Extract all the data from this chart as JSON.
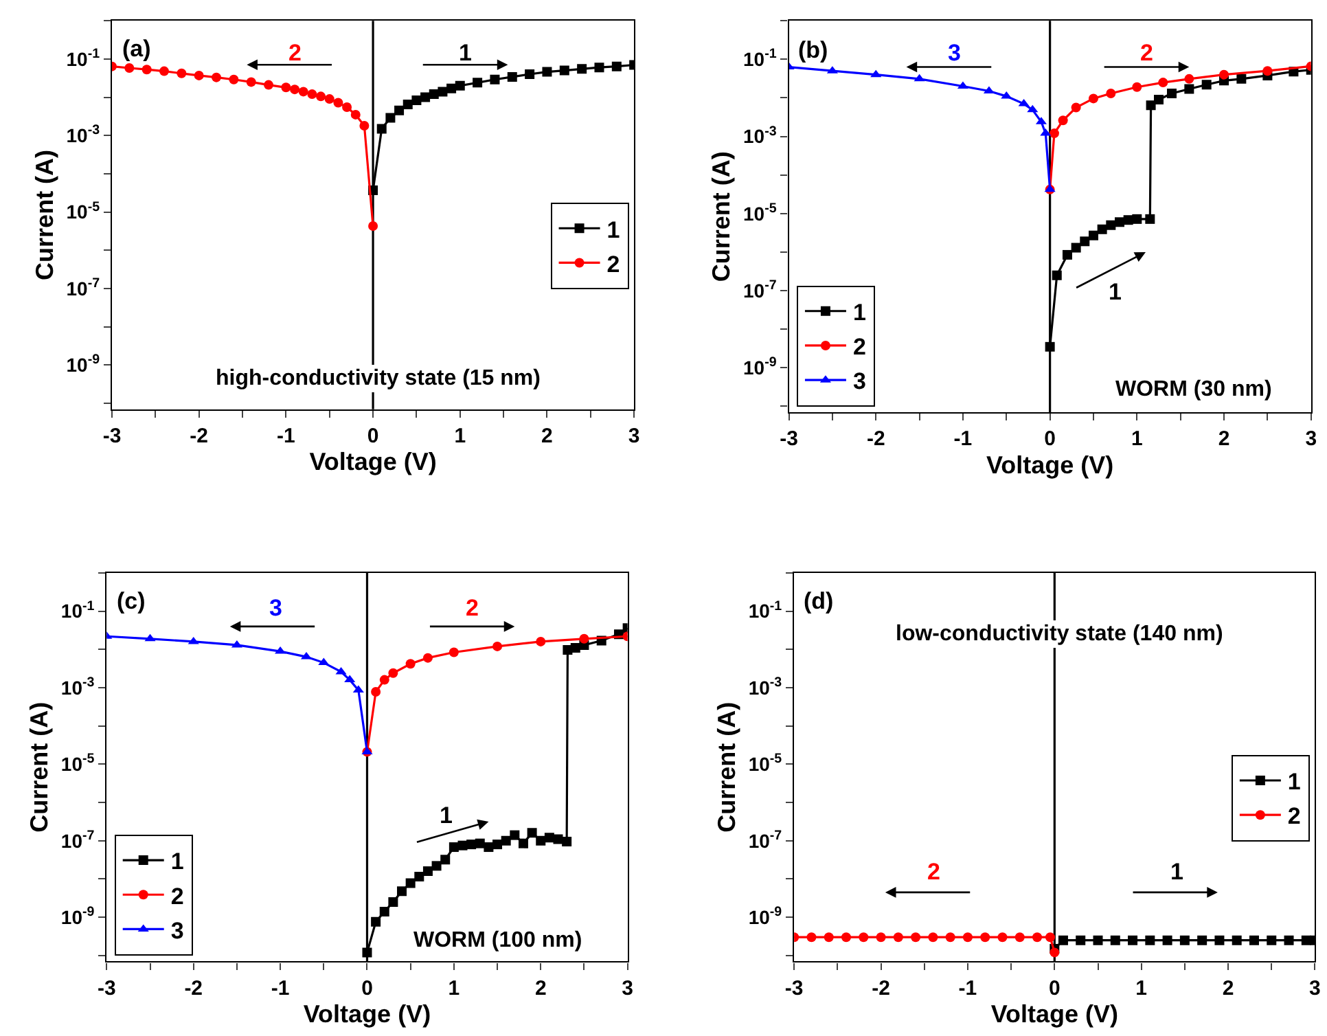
{
  "chart_data": [
    {
      "type": "line",
      "xlabel": "Voltage (V)",
      "ylabel": "Current (A)",
      "log": "y",
      "line_style": "solid",
      "legend": "right",
      "xlim": [
        -3,
        3
      ],
      "xticks": [
        -3,
        {
          "value": -2.5,
          "label": null
        },
        -2,
        {
          "value": -1.5,
          "label": null
        },
        -1,
        {
          "value": -0.5,
          "label": null
        },
        0,
        {
          "value": 0.5,
          "label": null
        },
        1,
        {
          "value": 1.5,
          "label": null
        },
        2,
        {
          "value": 2.5,
          "label": null
        },
        3
      ],
      "ylim": [
        7e-11,
        1
      ],
      "yticks": [
        {
          "value": 1,
          "label": null
        },
        {
          "value": 0.1,
          "label": "10$^{-1}$"
        },
        {
          "value": 0.01,
          "label": null
        },
        {
          "value": 0.001,
          "label": "10$^{-3}$"
        },
        {
          "value": 0.0001,
          "label": null
        },
        {
          "value": 1e-05,
          "label": "10$^{-5}$"
        },
        {
          "value": 1e-06,
          "label": null
        },
        {
          "value": 1e-07,
          "label": "10$^{-7}$"
        },
        {
          "value": 1e-08,
          "label": null
        },
        {
          "value": 1e-09,
          "label": "10$^{-9}$"
        },
        {
          "value": 1e-10,
          "label": null
        }
      ],
      "ref_lines": [
        {
          "axis": "x",
          "value": 0,
          "color": "#000000"
        }
      ],
      "annotations": [
        "(a)",
        "2",
        "1",
        "high-conductivity state (15 nm)"
      ],
      "series": [
        {
          "name": "1",
          "color": "#000000",
          "marker": "square",
          "x": [
            0,
            0.1,
            0.2,
            0.3,
            0.4,
            0.5,
            0.6,
            0.7,
            0.8,
            0.9,
            1.0,
            1.2,
            1.4,
            1.6,
            1.8,
            2.0,
            2.2,
            2.4,
            2.6,
            2.8,
            3.0
          ],
          "values": [
            3.7e-05,
            0.0015,
            0.0029,
            0.0045,
            0.0065,
            0.0083,
            0.01,
            0.012,
            0.014,
            0.017,
            0.02,
            0.024,
            0.029,
            0.034,
            0.04,
            0.046,
            0.05,
            0.055,
            0.06,
            0.064,
            0.07
          ]
        },
        {
          "name": "2",
          "color": "#ff0000",
          "marker": "circle",
          "x": [
            -3.0,
            -2.8,
            -2.6,
            -2.4,
            -2.2,
            -2.0,
            -1.8,
            -1.6,
            -1.4,
            -1.2,
            -1.0,
            -0.9,
            -0.8,
            -0.7,
            -0.6,
            -0.5,
            -0.4,
            -0.3,
            -0.2,
            -0.1,
            0
          ],
          "values": [
            0.064,
            0.058,
            0.053,
            0.048,
            0.042,
            0.037,
            0.033,
            0.029,
            0.025,
            0.021,
            0.018,
            0.016,
            0.014,
            0.012,
            0.0105,
            0.009,
            0.0072,
            0.0055,
            0.0035,
            0.0018,
            4.3e-06
          ]
        }
      ]
    },
    {
      "type": "line",
      "xlabel": "Voltage (V)",
      "ylabel": "Current (A)",
      "log": "y",
      "line_style": "solid",
      "legend": "bottom left",
      "xlim": [
        -3,
        3
      ],
      "xticks": [
        -3,
        {
          "value": -2.5,
          "label": null
        },
        -2,
        {
          "value": -1.5,
          "label": null
        },
        -1,
        {
          "value": -0.5,
          "label": null
        },
        0,
        {
          "value": 0.5,
          "label": null
        },
        1,
        {
          "value": 1.5,
          "label": null
        },
        2,
        {
          "value": 2.5,
          "label": null
        },
        3
      ],
      "ylim": [
        7e-11,
        1
      ],
      "yticks": [
        {
          "value": 1,
          "label": null
        },
        {
          "value": 0.1,
          "label": "10$^{-1}$"
        },
        {
          "value": 0.01,
          "label": null
        },
        {
          "value": 0.001,
          "label": "10$^{-3}$"
        },
        {
          "value": 0.0001,
          "label": null
        },
        {
          "value": 1e-05,
          "label": "10$^{-5}$"
        },
        {
          "value": 1e-06,
          "label": null
        },
        {
          "value": 1e-07,
          "label": "10$^{-7}$"
        },
        {
          "value": 1e-08,
          "label": null
        },
        {
          "value": 1e-09,
          "label": "10$^{-9}$"
        },
        {
          "value": 1e-10,
          "label": null
        }
      ],
      "ref_lines": [
        {
          "axis": "x",
          "value": 0,
          "color": "#000000"
        }
      ],
      "annotations": [
        "(b)",
        "3",
        "2",
        "1",
        "WORM (30 nm)"
      ],
      "series": [
        {
          "name": "1",
          "color": "#000000",
          "marker": "square",
          "x": [
            0,
            0.08,
            0.2,
            0.3,
            0.4,
            0.5,
            0.6,
            0.7,
            0.8,
            0.9,
            1.0,
            1.15,
            1.16,
            1.25,
            1.4,
            1.6,
            1.8,
            2.0,
            2.2,
            2.5,
            2.8,
            3.0
          ],
          "values": [
            3.5e-09,
            2.5e-07,
            8.5e-07,
            1.3e-06,
            1.9e-06,
            2.7e-06,
            3.9e-06,
            5e-06,
            6e-06,
            6.8e-06,
            7.2e-06,
            7.2e-06,
            0.0064,
            0.009,
            0.013,
            0.017,
            0.022,
            0.028,
            0.031,
            0.038,
            0.048,
            0.053
          ]
        },
        {
          "name": "2",
          "color": "#ff0000",
          "marker": "circle",
          "x": [
            0,
            0.05,
            0.15,
            0.3,
            0.5,
            0.7,
            1.0,
            1.3,
            1.6,
            2.0,
            2.5,
            3.0
          ],
          "values": [
            4.2e-05,
            0.0012,
            0.0026,
            0.0056,
            0.0096,
            0.013,
            0.019,
            0.025,
            0.031,
            0.04,
            0.05,
            0.066
          ]
        },
        {
          "name": "3",
          "color": "#0000ff",
          "marker": "triangle",
          "x": [
            -3.0,
            -2.5,
            -2.0,
            -1.5,
            -1.0,
            -0.7,
            -0.5,
            -0.3,
            -0.2,
            -0.1,
            -0.05,
            0
          ],
          "values": [
            0.063,
            0.05,
            0.04,
            0.031,
            0.02,
            0.015,
            0.011,
            0.007,
            0.0049,
            0.0024,
            0.0012,
            4.2e-05
          ]
        }
      ]
    },
    {
      "type": "line",
      "xlabel": "Voltage (V)",
      "ylabel": "Current (A)",
      "log": "y",
      "line_style": "solid",
      "legend": "bottom left",
      "xlim": [
        -3,
        3
      ],
      "xticks": [
        -3,
        {
          "value": -2.5,
          "label": null
        },
        -2,
        {
          "value": -1.5,
          "label": null
        },
        -1,
        {
          "value": -0.5,
          "label": null
        },
        0,
        {
          "value": 0.5,
          "label": null
        },
        1,
        {
          "value": 1.5,
          "label": null
        },
        2,
        {
          "value": 2.5,
          "label": null
        },
        3
      ],
      "ylim": [
        7e-11,
        1
      ],
      "yticks": [
        {
          "value": 1,
          "label": null
        },
        {
          "value": 0.1,
          "label": "10$^{-1}$"
        },
        {
          "value": 0.01,
          "label": null
        },
        {
          "value": 0.001,
          "label": "10$^{-3}$"
        },
        {
          "value": 0.0001,
          "label": null
        },
        {
          "value": 1e-05,
          "label": "10$^{-5}$"
        },
        {
          "value": 1e-06,
          "label": null
        },
        {
          "value": 1e-07,
          "label": "10$^{-7}$"
        },
        {
          "value": 1e-08,
          "label": null
        },
        {
          "value": 1e-09,
          "label": "10$^{-9}$"
        },
        {
          "value": 1e-10,
          "label": null
        }
      ],
      "ref_lines": [
        {
          "axis": "x",
          "value": 0,
          "color": "#000000"
        }
      ],
      "annotations": [
        "(c)",
        "3",
        "2",
        "1",
        "WORM (100 nm)"
      ],
      "series": [
        {
          "name": "1",
          "color": "#000000",
          "marker": "square",
          "x": [
            0,
            0.1,
            0.2,
            0.3,
            0.4,
            0.5,
            0.6,
            0.7,
            0.8,
            0.9,
            1.0,
            1.1,
            1.2,
            1.3,
            1.4,
            1.5,
            1.6,
            1.7,
            1.8,
            1.9,
            2.0,
            2.1,
            2.2,
            2.3,
            2.31,
            2.4,
            2.5,
            2.7,
            2.9,
            3.0
          ],
          "values": [
            1.2e-10,
            7.6e-10,
            1.4e-09,
            2.5e-09,
            4.8e-09,
            7.8e-09,
            1.15e-08,
            1.6e-08,
            2.2e-08,
            3.2e-08,
            6.8e-08,
            7.5e-08,
            8e-08,
            8.5e-08,
            6.8e-08,
            8e-08,
            1e-07,
            1.4e-07,
            8.5e-08,
            1.6e-07,
            1e-07,
            1.2e-07,
            1.1e-07,
            9.5e-08,
            0.0097,
            0.011,
            0.013,
            0.017,
            0.025,
            0.036
          ]
        },
        {
          "name": "2",
          "color": "#ff0000",
          "marker": "circle",
          "x": [
            0,
            0.1,
            0.2,
            0.3,
            0.5,
            0.7,
            1.0,
            1.5,
            2.0,
            2.5,
            3.0
          ],
          "values": [
            2.1e-05,
            0.00078,
            0.0016,
            0.0024,
            0.0042,
            0.006,
            0.0084,
            0.012,
            0.016,
            0.019,
            0.022
          ]
        },
        {
          "name": "3",
          "color": "#0000ff",
          "marker": "triangle",
          "x": [
            -3.0,
            -2.5,
            -2.0,
            -1.5,
            -1.0,
            -0.7,
            -0.5,
            -0.3,
            -0.2,
            -0.1,
            0
          ],
          "values": [
            0.022,
            0.019,
            0.016,
            0.013,
            0.0089,
            0.0064,
            0.0045,
            0.0026,
            0.0016,
            0.00086,
            2.1e-05
          ]
        }
      ]
    },
    {
      "type": "line",
      "xlabel": "Voltage (V)",
      "ylabel": "Current (A)",
      "log": "y",
      "line_style": "solid",
      "legend": "right",
      "xlim": [
        -3,
        3
      ],
      "xticks": [
        -3,
        {
          "value": -2.5,
          "label": null
        },
        -2,
        {
          "value": -1.5,
          "label": null
        },
        -1,
        {
          "value": -0.5,
          "label": null
        },
        0,
        {
          "value": 0.5,
          "label": null
        },
        1,
        {
          "value": 1.5,
          "label": null
        },
        2,
        {
          "value": 2.5,
          "label": null
        },
        3
      ],
      "ylim": [
        7e-11,
        1
      ],
      "yticks": [
        {
          "value": 1,
          "label": null
        },
        {
          "value": 0.1,
          "label": "10$^{-1}$"
        },
        {
          "value": 0.01,
          "label": null
        },
        {
          "value": 0.001,
          "label": "10$^{-3}$"
        },
        {
          "value": 0.0001,
          "label": null
        },
        {
          "value": 1e-05,
          "label": "10$^{-5}$"
        },
        {
          "value": 1e-06,
          "label": null
        },
        {
          "value": 1e-07,
          "label": "10$^{-7}$"
        },
        {
          "value": 1e-08,
          "label": null
        },
        {
          "value": 1e-09,
          "label": "10$^{-9}$"
        },
        {
          "value": 1e-10,
          "label": null
        }
      ],
      "ref_lines": [
        {
          "axis": "x",
          "value": 0,
          "color": "#000000"
        }
      ],
      "annotations": [
        "(d)",
        "low-conductivity state (140 nm)",
        "2",
        "1"
      ],
      "series": [
        {
          "name": "1",
          "color": "#000000",
          "marker": "square",
          "x": [
            0,
            0.1,
            0.3,
            0.5,
            0.7,
            0.9,
            1.1,
            1.3,
            1.5,
            1.7,
            1.9,
            2.1,
            2.3,
            2.5,
            2.7,
            2.9,
            3.0
          ],
          "values": [
            1.5e-10,
            2.5e-10,
            2.5e-10,
            2.5e-10,
            2.5e-10,
            2.5e-10,
            2.5e-10,
            2.5e-10,
            2.5e-10,
            2.5e-10,
            2.5e-10,
            2.5e-10,
            2.5e-10,
            2.5e-10,
            2.5e-10,
            2.5e-10,
            2.5e-10
          ]
        },
        {
          "name": "2",
          "color": "#ff0000",
          "marker": "circle",
          "x": [
            -3.0,
            -2.8,
            -2.6,
            -2.4,
            -2.2,
            -2.0,
            -1.8,
            -1.6,
            -1.4,
            -1.2,
            -1.0,
            -0.8,
            -0.6,
            -0.4,
            -0.2,
            -0.05,
            0
          ],
          "values": [
            3e-10,
            3e-10,
            3e-10,
            3e-10,
            3e-10,
            3e-10,
            3e-10,
            3e-10,
            3e-10,
            3e-10,
            3e-10,
            3e-10,
            3e-10,
            3e-10,
            3e-10,
            3e-10,
            1.2e-10
          ]
        }
      ]
    }
  ]
}
